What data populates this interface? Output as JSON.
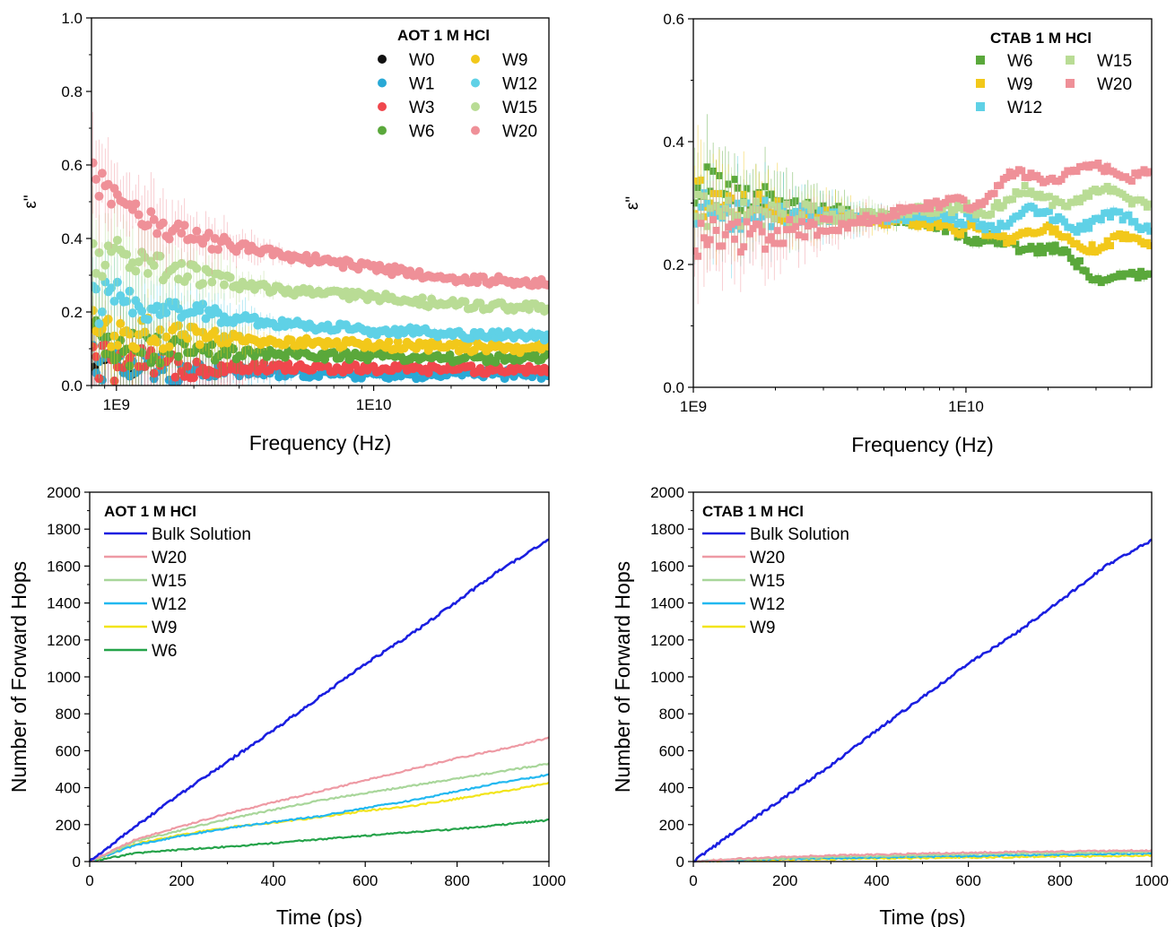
{
  "colors": {
    "W0": "#111111",
    "W1": "#29a9d6",
    "W3": "#f0474d",
    "W6": "#5aa83b",
    "W9": "#f2c81a",
    "W12": "#5fd1e6",
    "W15": "#b9dc95",
    "W20": "#ef9098",
    "Bulk Solution": "#1a1ee0",
    "W6_line": "#25a34a",
    "W9_line": "#f2e419",
    "W12_line": "#22b8f0",
    "W15_line": "#a8d69a",
    "W20_line": "#ee9aa4"
  },
  "chart_data": [
    {
      "id": "aot-dielectric",
      "type": "scatter",
      "legend_title": "AOT 1 M HCl",
      "legend_position": "top-right",
      "marker": "circle",
      "xlabel": "Frequency (Hz)",
      "ylabel": "ε\"",
      "x_scale": "log",
      "xlim": [
        800000000.0,
        48000000000.0
      ],
      "ylim": [
        0,
        1.0
      ],
      "x_ticks": [
        {
          "value": 1000000000.0,
          "label": "1E9"
        },
        {
          "value": 10000000000.0,
          "label": "1E10"
        }
      ],
      "y_ticks": [
        {
          "value": 0.0,
          "label": "0.0"
        },
        {
          "value": 0.2,
          "label": "0.2"
        },
        {
          "value": 0.4,
          "label": "0.4"
        },
        {
          "value": 0.6,
          "label": "0.6"
        },
        {
          "value": 0.8,
          "label": "0.8"
        },
        {
          "value": 1.0,
          "label": "1.0"
        }
      ],
      "grid": false,
      "error_bars": true,
      "series": [
        {
          "name": "W0",
          "x": [
            820000000.0,
            900000000.0,
            1150000000.0,
            1250000000.0
          ],
          "y": [
            0.05,
            0.07,
            0.03,
            0.05
          ]
        },
        {
          "name": "W1",
          "x": [
            800000000.0,
            1000000000.0,
            2000000000.0,
            4000000000.0,
            10000000000.0,
            20000000000.0,
            48000000000.0
          ],
          "y": [
            0.08,
            0.05,
            0.04,
            0.035,
            0.03,
            0.03,
            0.03
          ]
        },
        {
          "name": "W3",
          "x": [
            800000000.0,
            1000000000.0,
            2000000000.0,
            4000000000.0,
            10000000000.0,
            20000000000.0,
            48000000000.0
          ],
          "y": [
            0.07,
            0.06,
            0.05,
            0.05,
            0.045,
            0.045,
            0.045
          ]
        },
        {
          "name": "W6",
          "x": [
            800000000.0,
            1000000000.0,
            2000000000.0,
            4000000000.0,
            10000000000.0,
            20000000000.0,
            48000000000.0
          ],
          "y": [
            0.12,
            0.1,
            0.09,
            0.085,
            0.08,
            0.075,
            0.075
          ]
        },
        {
          "name": "W9",
          "x": [
            800000000.0,
            1000000000.0,
            2000000000.0,
            4000000000.0,
            10000000000.0,
            20000000000.0,
            48000000000.0
          ],
          "y": [
            0.16,
            0.15,
            0.13,
            0.12,
            0.11,
            0.105,
            0.1
          ]
        },
        {
          "name": "W12",
          "x": [
            800000000.0,
            1000000000.0,
            2000000000.0,
            4000000000.0,
            10000000000.0,
            20000000000.0,
            48000000000.0
          ],
          "y": [
            0.22,
            0.23,
            0.2,
            0.17,
            0.15,
            0.14,
            0.135
          ]
        },
        {
          "name": "W15",
          "x": [
            800000000.0,
            1000000000.0,
            2000000000.0,
            4000000000.0,
            10000000000.0,
            20000000000.0,
            48000000000.0
          ],
          "y": [
            0.33,
            0.36,
            0.3,
            0.26,
            0.24,
            0.22,
            0.21
          ]
        },
        {
          "name": "W20",
          "x": [
            800000000.0,
            1000000000.0,
            2000000000.0,
            4000000000.0,
            10000000000.0,
            20000000000.0,
            48000000000.0
          ],
          "y": [
            0.55,
            0.5,
            0.4,
            0.36,
            0.32,
            0.29,
            0.28
          ]
        }
      ]
    },
    {
      "id": "ctab-dielectric",
      "type": "scatter",
      "legend_title": "CTAB 1 M HCl",
      "legend_position": "top-right",
      "marker": "square",
      "xlabel": "Frequency (Hz)",
      "ylabel": "ε\"",
      "x_scale": "log",
      "xlim": [
        1000000000.0,
        48000000000.0
      ],
      "ylim": [
        0,
        0.6
      ],
      "x_ticks": [
        {
          "value": 1000000000.0,
          "label": "1E9"
        },
        {
          "value": 10000000000.0,
          "label": "1E10"
        }
      ],
      "y_ticks": [
        {
          "value": 0.0,
          "label": "0.0"
        },
        {
          "value": 0.2,
          "label": "0.2"
        },
        {
          "value": 0.4,
          "label": "0.4"
        },
        {
          "value": 0.6,
          "label": "0.6"
        }
      ],
      "grid": false,
      "error_bars": true,
      "series": [
        {
          "name": "W6",
          "x": [
            1000000000.0,
            1300000000.0,
            2000000000.0,
            4000000000.0,
            8000000000.0,
            11000000000.0,
            16000000000.0,
            25000000000.0,
            35000000000.0,
            48000000000.0
          ],
          "y": [
            0.33,
            0.32,
            0.3,
            0.28,
            0.265,
            0.23,
            0.24,
            0.2,
            0.18,
            0.17
          ]
        },
        {
          "name": "W9",
          "x": [
            1000000000.0,
            1300000000.0,
            2000000000.0,
            4000000000.0,
            8000000000.0,
            11000000000.0,
            16000000000.0,
            25000000000.0,
            35000000000.0,
            48000000000.0
          ],
          "y": [
            0.31,
            0.3,
            0.285,
            0.275,
            0.265,
            0.245,
            0.255,
            0.24,
            0.235,
            0.23
          ]
        },
        {
          "name": "W12",
          "x": [
            1000000000.0,
            1300000000.0,
            2000000000.0,
            4000000000.0,
            8000000000.0,
            11000000000.0,
            16000000000.0,
            25000000000.0,
            35000000000.0,
            48000000000.0
          ],
          "y": [
            0.29,
            0.285,
            0.28,
            0.275,
            0.28,
            0.265,
            0.28,
            0.27,
            0.27,
            0.265
          ]
        },
        {
          "name": "W15",
          "x": [
            1000000000.0,
            1300000000.0,
            2000000000.0,
            4000000000.0,
            8000000000.0,
            11000000000.0,
            16000000000.0,
            25000000000.0,
            35000000000.0,
            48000000000.0
          ],
          "y": [
            0.3,
            0.29,
            0.285,
            0.28,
            0.29,
            0.295,
            0.31,
            0.31,
            0.31,
            0.31
          ]
        },
        {
          "name": "W20",
          "x": [
            1000000000.0,
            1300000000.0,
            2000000000.0,
            4000000000.0,
            8000000000.0,
            11000000000.0,
            16000000000.0,
            25000000000.0,
            35000000000.0,
            48000000000.0
          ],
          "y": [
            0.24,
            0.245,
            0.25,
            0.27,
            0.3,
            0.31,
            0.34,
            0.35,
            0.35,
            0.355
          ]
        }
      ]
    },
    {
      "id": "aot-hops",
      "type": "line",
      "legend_title": "AOT 1 M HCl",
      "legend_position": "top-left",
      "xlabel": "Time (ps)",
      "ylabel": "Number of Forward Hops",
      "xlim": [
        0,
        1000
      ],
      "ylim": [
        0,
        2000
      ],
      "x_ticks": [
        0,
        200,
        400,
        600,
        800,
        1000
      ],
      "y_ticks": [
        0,
        200,
        400,
        600,
        800,
        1000,
        1200,
        1400,
        1600,
        1800,
        2000
      ],
      "grid": false,
      "series": [
        {
          "name": "Bulk Solution",
          "x": [
            0,
            100,
            200,
            300,
            400,
            500,
            600,
            700,
            800,
            900,
            1000
          ],
          "y": [
            0,
            190,
            370,
            540,
            710,
            890,
            1070,
            1230,
            1410,
            1590,
            1740
          ]
        },
        {
          "name": "W20",
          "x": [
            0,
            100,
            200,
            300,
            400,
            500,
            600,
            700,
            800,
            900,
            1000
          ],
          "y": [
            0,
            120,
            190,
            260,
            320,
            380,
            440,
            500,
            560,
            610,
            670
          ]
        },
        {
          "name": "W15",
          "x": [
            0,
            100,
            200,
            300,
            400,
            500,
            600,
            700,
            800,
            900,
            1000
          ],
          "y": [
            0,
            110,
            170,
            230,
            280,
            330,
            370,
            410,
            450,
            490,
            530
          ]
        },
        {
          "name": "W12",
          "x": [
            0,
            100,
            200,
            300,
            400,
            500,
            600,
            700,
            800,
            900,
            1000
          ],
          "y": [
            0,
            90,
            140,
            180,
            215,
            245,
            290,
            330,
            380,
            430,
            470
          ]
        },
        {
          "name": "W9",
          "x": [
            0,
            100,
            200,
            300,
            400,
            500,
            600,
            700,
            800,
            900,
            1000
          ],
          "y": [
            0,
            95,
            145,
            185,
            210,
            240,
            275,
            300,
            340,
            380,
            425
          ]
        },
        {
          "name": "W6",
          "x": [
            0,
            100,
            200,
            300,
            400,
            500,
            600,
            700,
            800,
            900,
            1000
          ],
          "y": [
            0,
            45,
            65,
            80,
            100,
            120,
            140,
            160,
            175,
            200,
            225
          ]
        }
      ]
    },
    {
      "id": "ctab-hops",
      "type": "line",
      "legend_title": "CTAB 1 M HCl",
      "legend_position": "top-left",
      "xlabel": "Time (ps)",
      "ylabel": "Number of Forward Hops",
      "xlim": [
        0,
        1000
      ],
      "ylim": [
        0,
        2000
      ],
      "x_ticks": [
        0,
        200,
        400,
        600,
        800,
        1000
      ],
      "y_ticks": [
        0,
        200,
        400,
        600,
        800,
        1000,
        1200,
        1400,
        1600,
        1800,
        2000
      ],
      "grid": false,
      "series": [
        {
          "name": "Bulk Solution",
          "x": [
            0,
            100,
            200,
            300,
            400,
            500,
            600,
            700,
            800,
            900,
            1000
          ],
          "y": [
            0,
            180,
            350,
            520,
            710,
            890,
            1070,
            1230,
            1410,
            1600,
            1740
          ]
        },
        {
          "name": "W20",
          "x": [
            0,
            100,
            200,
            300,
            400,
            500,
            600,
            700,
            800,
            900,
            1000
          ],
          "y": [
            0,
            15,
            25,
            33,
            38,
            43,
            48,
            52,
            55,
            58,
            60
          ]
        },
        {
          "name": "W15",
          "x": [
            0,
            100,
            200,
            300,
            400,
            500,
            600,
            700,
            800,
            900,
            1000
          ],
          "y": [
            0,
            10,
            18,
            25,
            30,
            35,
            40,
            44,
            47,
            50,
            52
          ]
        },
        {
          "name": "W12",
          "x": [
            0,
            100,
            200,
            300,
            400,
            500,
            600,
            700,
            800,
            900,
            1000
          ],
          "y": [
            0,
            8,
            14,
            18,
            22,
            26,
            30,
            34,
            37,
            40,
            43
          ]
        },
        {
          "name": "W9",
          "x": [
            0,
            100,
            200,
            300,
            400,
            500,
            600,
            700,
            800,
            900,
            1000
          ],
          "y": [
            0,
            6,
            10,
            13,
            16,
            19,
            22,
            25,
            28,
            30,
            33
          ]
        }
      ]
    }
  ]
}
